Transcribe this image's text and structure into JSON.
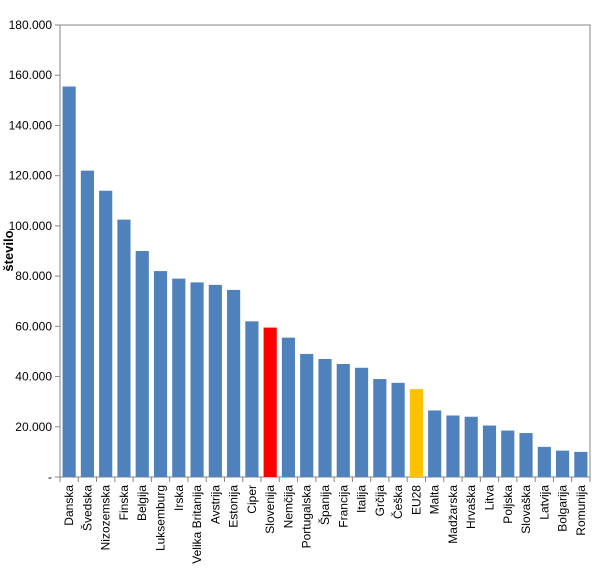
{
  "chart_data": {
    "type": "bar",
    "ylabel": "število",
    "xlabel": "",
    "ylim": [
      0,
      180000
    ],
    "ytick_values": [
      0,
      20000,
      40000,
      60000,
      80000,
      100000,
      120000,
      140000,
      160000,
      180000
    ],
    "ytick_labels": [
      "-",
      "20.000",
      "40.000",
      "60.000",
      "80.000",
      "100.000",
      "120.000",
      "140.000",
      "160.000",
      "180.000"
    ],
    "grid": false,
    "legend": "none",
    "categories": [
      "Danska",
      "Švedska",
      "Nizozemska",
      "Finska",
      "Belgija",
      "Luksemburg",
      "Irska",
      "Velika Britanija",
      "Avstrija",
      "Estonija",
      "Ciper",
      "Slovenija",
      "Nemčija",
      "Portugalska",
      "Španija",
      "Francija",
      "Italija",
      "Grčija",
      "Češka",
      "EU28",
      "Malta",
      "Madžarska",
      "Hrvaška",
      "Litva",
      "Poljska",
      "Slovaška",
      "Latvija",
      "Bolgarija",
      "Romunija"
    ],
    "values": [
      155500,
      122000,
      114000,
      102500,
      90000,
      82000,
      79000,
      77500,
      76500,
      74500,
      62000,
      59500,
      55500,
      49000,
      47000,
      45000,
      43500,
      39000,
      37500,
      35000,
      26500,
      24500,
      24000,
      20500,
      18500,
      17500,
      12000,
      10500,
      10000
    ],
    "colors": {
      "default": "#4F81BD",
      "Slovenija": "#FF0000",
      "EU28": "#FFC000"
    }
  }
}
